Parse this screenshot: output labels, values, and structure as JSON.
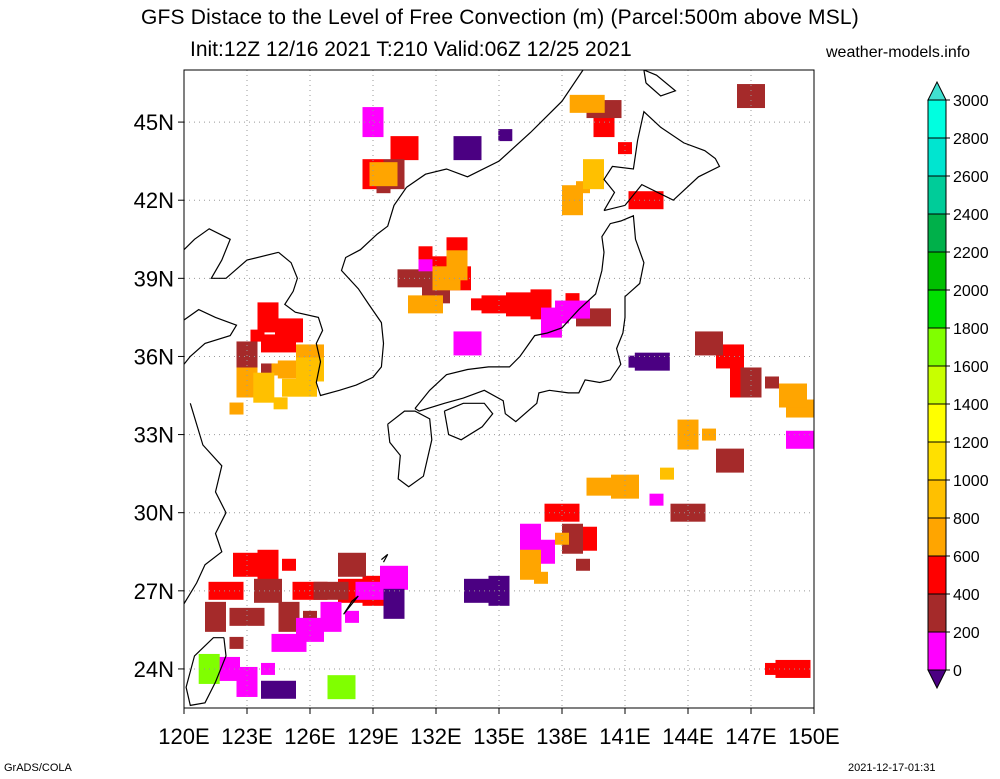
{
  "title": {
    "line1": "GFS Distace to the Level of Free Convection (m) (Parcel:500m above MSL)",
    "line2": "Init:12Z 12/16 2021 T:210 Valid:06Z 12/25 2021",
    "source": "weather-models.info"
  },
  "footer": {
    "left": "GrADS/COLA",
    "right": "2021-12-17-01:31"
  },
  "map": {
    "lon_range": [
      120,
      150
    ],
    "lat_range": [
      22.5,
      47
    ],
    "lon_ticks": [
      "120E",
      "123E",
      "126E",
      "129E",
      "132E",
      "135E",
      "138E",
      "141E",
      "144E",
      "147E",
      "150E"
    ],
    "lat_ticks": [
      "24N",
      "27N",
      "30N",
      "33N",
      "36N",
      "39N",
      "42N",
      "45N"
    ],
    "lat_tick_values": [
      24,
      27,
      30,
      33,
      36,
      39,
      42,
      45
    ],
    "lon_tick_values": [
      120,
      123,
      126,
      129,
      132,
      135,
      138,
      141,
      144,
      147,
      150
    ],
    "grid": "dotted",
    "coastline_color": "#000000"
  },
  "colorbar": {
    "levels": [
      "0",
      "200",
      "400",
      "600",
      "800",
      "1000",
      "1200",
      "1400",
      "1600",
      "1800",
      "2000",
      "2200",
      "2400",
      "2600",
      "2800",
      "3000"
    ],
    "colors": [
      "#4b0082",
      "#ff00ff",
      "#a52a2a",
      "#ff0000",
      "#ffa500",
      "#ffc000",
      "#ffe000",
      "#ffff00",
      "#c8ff00",
      "#80ff00",
      "#00e000",
      "#00c000",
      "#00b04a",
      "#00cc99",
      "#00e5d0",
      "#00ffe0",
      "#40e0d0"
    ]
  },
  "fields": [
    {
      "color": "#ff0000",
      "points": [
        [
          123.5,
          36.8
        ],
        [
          124.5,
          36.5
        ],
        [
          125,
          37
        ],
        [
          124,
          37.5
        ],
        [
          131.5,
          40
        ],
        [
          132,
          39.5
        ],
        [
          133,
          39
        ],
        [
          133,
          40
        ],
        [
          134,
          38
        ],
        [
          135,
          38
        ],
        [
          136,
          38
        ],
        [
          137,
          38
        ],
        [
          138.5,
          38.2
        ],
        [
          122,
          27
        ],
        [
          123,
          28
        ],
        [
          124,
          28
        ],
        [
          125,
          28
        ],
        [
          126,
          27
        ],
        [
          128,
          27
        ],
        [
          129,
          27
        ],
        [
          137.5,
          30
        ],
        [
          138,
          30
        ],
        [
          139,
          29
        ],
        [
          140,
          45
        ],
        [
          141,
          44
        ],
        [
          142,
          42
        ],
        [
          146,
          36
        ],
        [
          146.5,
          35
        ],
        [
          148,
          24
        ],
        [
          149,
          24
        ],
        [
          130.5,
          44
        ],
        [
          129,
          43
        ]
      ]
    },
    {
      "color": "#a52a2a",
      "points": [
        [
          123,
          36
        ],
        [
          124,
          35.5
        ],
        [
          131,
          39
        ],
        [
          132,
          38.5
        ],
        [
          121.5,
          26
        ],
        [
          122.5,
          25
        ],
        [
          123,
          26
        ],
        [
          124,
          27
        ],
        [
          125,
          26
        ],
        [
          126,
          26
        ],
        [
          127,
          27
        ],
        [
          128,
          28
        ],
        [
          138.5,
          29
        ],
        [
          139,
          28
        ],
        [
          144,
          30
        ],
        [
          146,
          32
        ],
        [
          147,
          35
        ],
        [
          148,
          35
        ],
        [
          140,
          45.5
        ],
        [
          147,
          46
        ],
        [
          130,
          43
        ],
        [
          129.5,
          42.5
        ],
        [
          139.5,
          37.5
        ],
        [
          145,
          36.5
        ]
      ]
    },
    {
      "color": "#ff00ff",
      "points": [
        [
          122,
          24
        ],
        [
          123,
          23.5
        ],
        [
          124,
          24
        ],
        [
          125,
          25
        ],
        [
          126,
          25.5
        ],
        [
          127,
          26
        ],
        [
          128,
          26
        ],
        [
          129,
          27
        ],
        [
          130,
          27.5
        ],
        [
          137.5,
          37.3
        ],
        [
          138,
          37.5
        ],
        [
          138.5,
          37.8
        ],
        [
          137,
          28.5
        ],
        [
          136.5,
          29
        ],
        [
          142.5,
          30.5
        ],
        [
          149.5,
          32.8
        ],
        [
          133.5,
          36.5
        ],
        [
          129,
          45
        ],
        [
          131.5,
          39.5
        ]
      ]
    },
    {
      "color": "#4b0082",
      "points": [
        [
          124.5,
          23.2
        ],
        [
          134,
          27
        ],
        [
          135,
          27
        ],
        [
          141.5,
          35.8
        ],
        [
          142.3,
          35.8
        ],
        [
          133.5,
          44
        ],
        [
          130,
          26.5
        ],
        [
          135.3,
          44.5
        ]
      ]
    },
    {
      "color": "#ffa500",
      "points": [
        [
          124.5,
          35.5
        ],
        [
          125.3,
          35.5
        ],
        [
          126,
          36
        ],
        [
          123,
          35
        ],
        [
          122.5,
          34
        ],
        [
          131.5,
          38
        ],
        [
          132.5,
          39
        ],
        [
          133,
          39.5
        ],
        [
          138,
          29
        ],
        [
          140,
          31
        ],
        [
          141,
          31
        ],
        [
          144,
          33
        ],
        [
          145,
          33
        ],
        [
          149.5,
          34
        ],
        [
          149,
          34.5
        ],
        [
          138.5,
          42
        ],
        [
          139,
          42.5
        ],
        [
          139.2,
          45.7
        ],
        [
          129.5,
          43
        ],
        [
          136.5,
          28
        ],
        [
          137,
          27.5
        ]
      ]
    },
    {
      "color": "#ffc000",
      "points": [
        [
          123.8,
          34.8
        ],
        [
          124.6,
          34.2
        ],
        [
          125.5,
          34.8
        ],
        [
          126,
          35.5
        ],
        [
          139.5,
          43
        ],
        [
          143,
          31.5
        ]
      ]
    },
    {
      "color": "#80ff00",
      "points": [
        [
          127.5,
          23.3
        ],
        [
          121.2,
          24
        ]
      ]
    }
  ]
}
